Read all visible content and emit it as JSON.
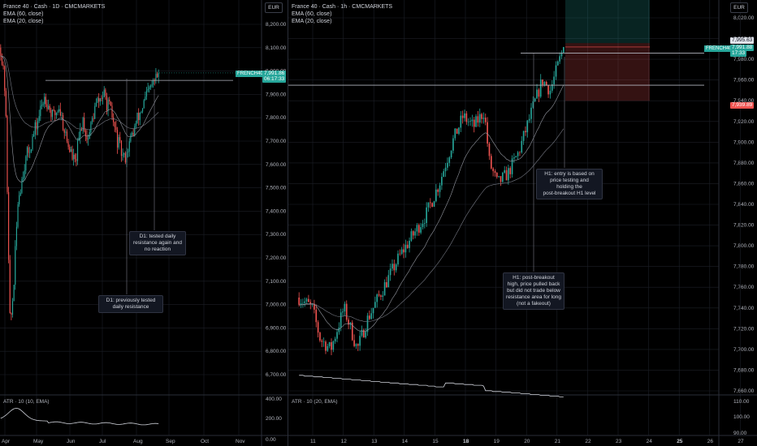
{
  "left": {
    "title": "France 40 · Cash · 1D · CMCMARKETS",
    "ema1": "EMA (60, close)",
    "ema2": "EMA (20, close)",
    "currency": "EUR",
    "ticker": "FRENCH40",
    "last_price": "7,991.86",
    "countdown": "06:17:33",
    "atr_label": "ATR · 10 (10, EMA)",
    "note_previous": "D1: previously tested\ndaily resistance",
    "note_tested": "D1: tested daily\nresistance again and\nno reaction",
    "yaxis": [
      "8,200.00",
      "8,100.00",
      "8,000.00",
      "7,900.00",
      "7,800.00",
      "7,700.00",
      "7,600.00",
      "7,500.00",
      "7,400.00",
      "7,300.00",
      "7,200.00",
      "7,100.00",
      "7,000.00",
      "6,900.00",
      "6,800.00",
      "6,700.00"
    ],
    "xaxis": [
      "Apr",
      "May",
      "Jun",
      "Jul",
      "Aug",
      "Sep",
      "Oct",
      "Nov"
    ],
    "atr_axis": [
      "400.00",
      "200.00"
    ],
    "atr_axis_bottom": "0.00"
  },
  "right": {
    "title": "France 40 · Cash · 1h · CMCMARKETS",
    "ema1": "EMA (60, close)",
    "ema2": "EMA (20, close)",
    "currency": "EUR",
    "ticker": "FRENCH40",
    "target_price": "7,995.63",
    "last_price": "7,991.88",
    "countdown": "17:33",
    "stop_price": "7,939.89",
    "atr_label": "ATR · 10 (20, EMA)",
    "note_entry": "H1: entry is based on\nprice testing and\nholding the\npost-breakout H1 level",
    "note_breakout": "H1: post-breakout\nhigh, price pulled back\nbut did not trade below\nresistance area for long\n(not a fakeout)",
    "yaxis": [
      "8,020.00",
      "8,000.00",
      "7,980.00",
      "7,960.00",
      "7,940.00",
      "7,920.00",
      "7,900.00",
      "7,880.00",
      "7,860.00",
      "7,840.00",
      "7,820.00",
      "7,800.00",
      "7,780.00",
      "7,760.00",
      "7,740.00",
      "7,720.00",
      "7,700.00",
      "7,680.00",
      "7,660.00"
    ],
    "xaxis": [
      "11",
      "12",
      "13",
      "14",
      "15",
      "18",
      "19",
      "20",
      "21",
      "22",
      "23",
      "24",
      "25",
      "26",
      "27"
    ],
    "xaxis_bold": [
      "18",
      "25"
    ],
    "atr_axis": [
      "110.00",
      "100.00",
      "90.00"
    ]
  },
  "colors": {
    "up": "#26a69a",
    "down": "#ef5350",
    "ema": "#787b86",
    "grid": "#1c1f27",
    "line": "#b2b5be"
  },
  "chart_data": [
    {
      "type": "candlestick",
      "title": "France 40 · Cash · 1D · CMCMARKETS",
      "ylabel": "EUR",
      "x_range": [
        "Apr",
        "Nov"
      ],
      "ylim": [
        6700,
        8200
      ],
      "indicators": [
        "EMA (60, close)",
        "EMA (20, close)",
        "ATR · 10 (10, EMA)"
      ],
      "horizontal_level": 7960,
      "last": 7991.86
    },
    {
      "type": "candlestick",
      "title": "France 40 · Cash · 1h · CMCMARKETS",
      "ylabel": "EUR",
      "x_range": [
        "11",
        "27"
      ],
      "ylim": [
        7660,
        8020
      ],
      "indicators": [
        "EMA (60, close)",
        "EMA (20, close)",
        "ATR · 10 (20, EMA)"
      ],
      "horizontal_levels": [
        7986,
        7955
      ],
      "target": 7995.63,
      "last": 7991.88,
      "stop": 7939.89
    }
  ]
}
